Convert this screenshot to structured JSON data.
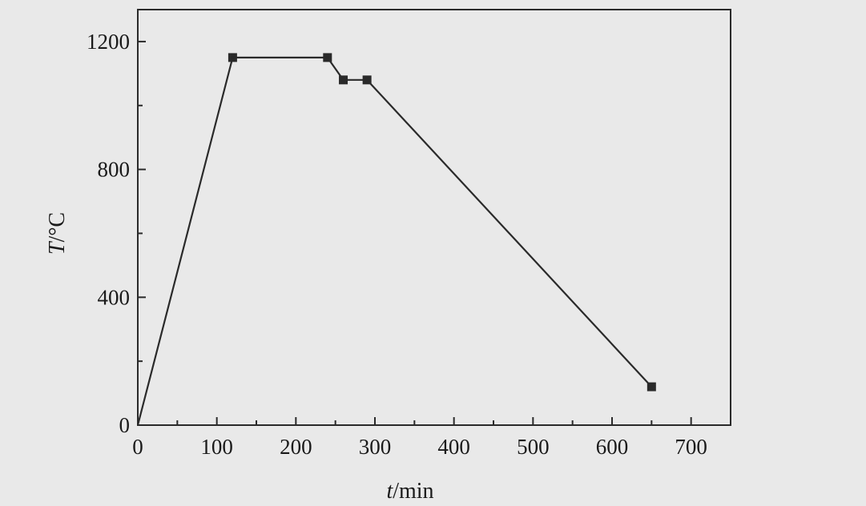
{
  "chart_data": {
    "type": "line",
    "title": "",
    "xlabel": {
      "symbol": "t",
      "unit": "/min"
    },
    "ylabel": {
      "symbol": "T",
      "unit": "/°C"
    },
    "xlim": [
      0,
      750
    ],
    "ylim": [
      0,
      1300
    ],
    "xticks": [
      0,
      100,
      200,
      300,
      400,
      500,
      600,
      700
    ],
    "xtick_labels": [
      "0",
      "100",
      "200",
      "300",
      "400",
      "500",
      "600",
      "700"
    ],
    "yticks": [
      0,
      400,
      800,
      1200
    ],
    "ytick_labels": [
      "0",
      "400",
      "800",
      "1200"
    ],
    "grid": false,
    "legend": "none",
    "series": [
      {
        "x": [
          0,
          120,
          240,
          260,
          290,
          650
        ],
        "y": [
          0,
          1150,
          1150,
          1080,
          1080,
          120
        ],
        "marker": "square",
        "color": "#2a2a2a"
      }
    ]
  }
}
